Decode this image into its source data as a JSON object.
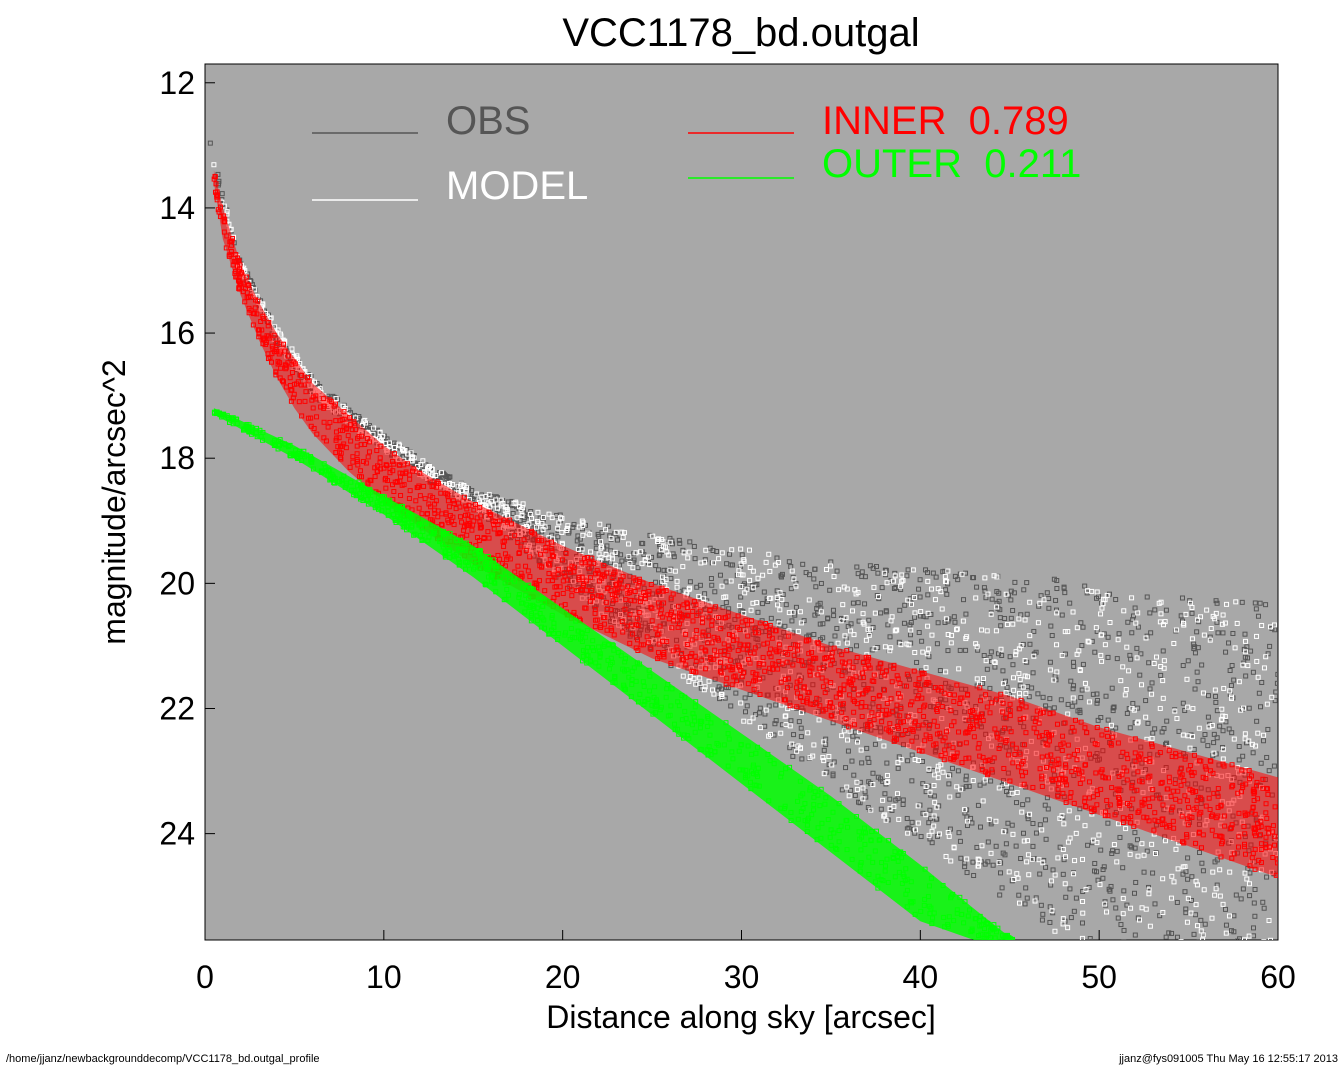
{
  "chart_data": {
    "type": "scatter",
    "title": "VCC1178_bd.outgal",
    "xlabel": "Distance along sky [arcsec]",
    "ylabel": "magnitude/arcsec^2",
    "xlim": [
      0,
      60
    ],
    "ylim": [
      25.7,
      11.7
    ],
    "y_inverted": true,
    "grid": false,
    "background_color": "#a8a8a8",
    "x_ticks": [
      0,
      10,
      20,
      30,
      40,
      50,
      60
    ],
    "y_ticks": [
      12,
      14,
      16,
      18,
      20,
      22,
      24
    ],
    "legend": [
      {
        "label": "OBS",
        "value": "",
        "color": "#555555"
      },
      {
        "label": "MODEL",
        "value": "",
        "color": "#ffffff"
      },
      {
        "label": "INNER",
        "value": "0.789",
        "color": "#ff0000"
      },
      {
        "label": "OUTER",
        "value": "0.211",
        "color": "#00ff00"
      }
    ],
    "series": [
      {
        "name": "OBS",
        "color": "#555555",
        "x": [
          0.2,
          1,
          2,
          3,
          4,
          5,
          6,
          8,
          10,
          12,
          15,
          18,
          20,
          25,
          30,
          35,
          40,
          45,
          50,
          55,
          60
        ],
        "y": [
          12.8,
          13.9,
          14.9,
          15.5,
          16.0,
          16.4,
          16.8,
          17.3,
          17.7,
          18.1,
          18.6,
          19.0,
          19.3,
          19.9,
          20.4,
          20.9,
          21.3,
          21.7,
          22.1,
          22.6,
          23.0
        ]
      },
      {
        "name": "MODEL",
        "color": "#ffffff",
        "x": [
          0.2,
          1,
          2,
          3,
          4,
          5,
          6,
          8,
          10,
          12,
          15,
          18,
          20,
          25,
          30,
          35,
          40,
          45,
          50,
          55,
          60
        ],
        "y": [
          12.9,
          13.9,
          14.9,
          15.5,
          16.0,
          16.4,
          16.8,
          17.3,
          17.7,
          18.1,
          18.6,
          19.0,
          19.3,
          19.9,
          20.4,
          20.9,
          21.3,
          21.7,
          22.1,
          22.6,
          23.0
        ]
      },
      {
        "name": "INNER",
        "color": "#ff0000",
        "x": [
          0.5,
          1,
          2,
          3,
          4,
          5,
          6,
          8,
          10,
          12,
          15,
          20,
          25,
          30,
          35,
          40,
          45,
          50,
          55,
          60
        ],
        "y_upper": [
          13.4,
          14.0,
          14.9,
          15.5,
          16.0,
          16.4,
          16.8,
          17.3,
          17.8,
          18.2,
          18.7,
          19.4,
          20.0,
          20.5,
          21.0,
          21.4,
          21.8,
          22.3,
          22.7,
          23.1
        ],
        "y_lower": [
          13.6,
          14.5,
          15.4,
          16.1,
          16.7,
          17.2,
          17.6,
          18.2,
          18.7,
          19.1,
          19.7,
          20.5,
          21.2,
          21.7,
          22.2,
          22.7,
          23.2,
          23.7,
          24.2,
          24.7
        ]
      },
      {
        "name": "OUTER",
        "color": "#00ff00",
        "x": [
          0.5,
          5,
          10,
          15,
          20,
          25,
          30,
          35,
          40,
          43,
          45.2
        ],
        "y_upper": [
          17.2,
          17.8,
          18.6,
          19.4,
          20.4,
          21.4,
          22.4,
          23.4,
          24.5,
          25.2,
          25.7
        ],
        "y_lower": [
          17.3,
          18.0,
          18.9,
          19.9,
          21.0,
          22.1,
          23.2,
          24.3,
          25.4,
          25.7,
          25.7
        ]
      }
    ]
  },
  "footer": {
    "path": "/home/jjanz/newbackgrounddecomp/VCC1178_bd.outgal_profile",
    "stamp": "jjanz@fys091005  Thu May 16 12:55:17 2013"
  }
}
